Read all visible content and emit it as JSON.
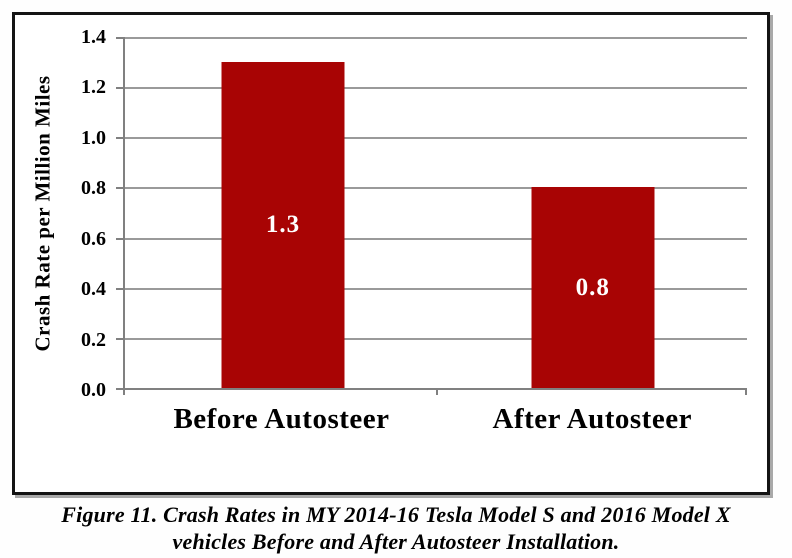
{
  "figure": {
    "caption_line1": "Figure 11. Crash Rates in MY 2014-16 Tesla Model S and 2016 Model X",
    "caption_line2": "vehicles Before and After Autosteer Installation."
  },
  "chart_data": {
    "type": "bar",
    "categories": [
      "Before Autosteer",
      "After Autosteer"
    ],
    "values": [
      1.3,
      0.8
    ],
    "data_labels": [
      "1.3",
      "0.8"
    ],
    "data_label_position": "center-inside",
    "title": "",
    "xlabel": "",
    "ylabel": "Crash Rate per Million Miles",
    "ylim": [
      0,
      1.4
    ],
    "yticks": [
      0.0,
      0.2,
      0.4,
      0.6,
      0.8,
      1.0,
      1.2,
      1.4
    ],
    "ytick_labels": [
      "0.0",
      "0.2",
      "0.4",
      "0.6",
      "0.8",
      "1.0",
      "1.2",
      "1.4"
    ],
    "grid": "horizontal",
    "legend": "none",
    "colors": {
      "bar_fill": "#a80404",
      "bar_value_text": "#ffffff",
      "gridline": "#9a9a9a",
      "axis_line": "#808080",
      "frame_border": "#141414",
      "frame_shadow": "#a9a9a9",
      "text": "#000000",
      "background": "#ffffff"
    }
  }
}
